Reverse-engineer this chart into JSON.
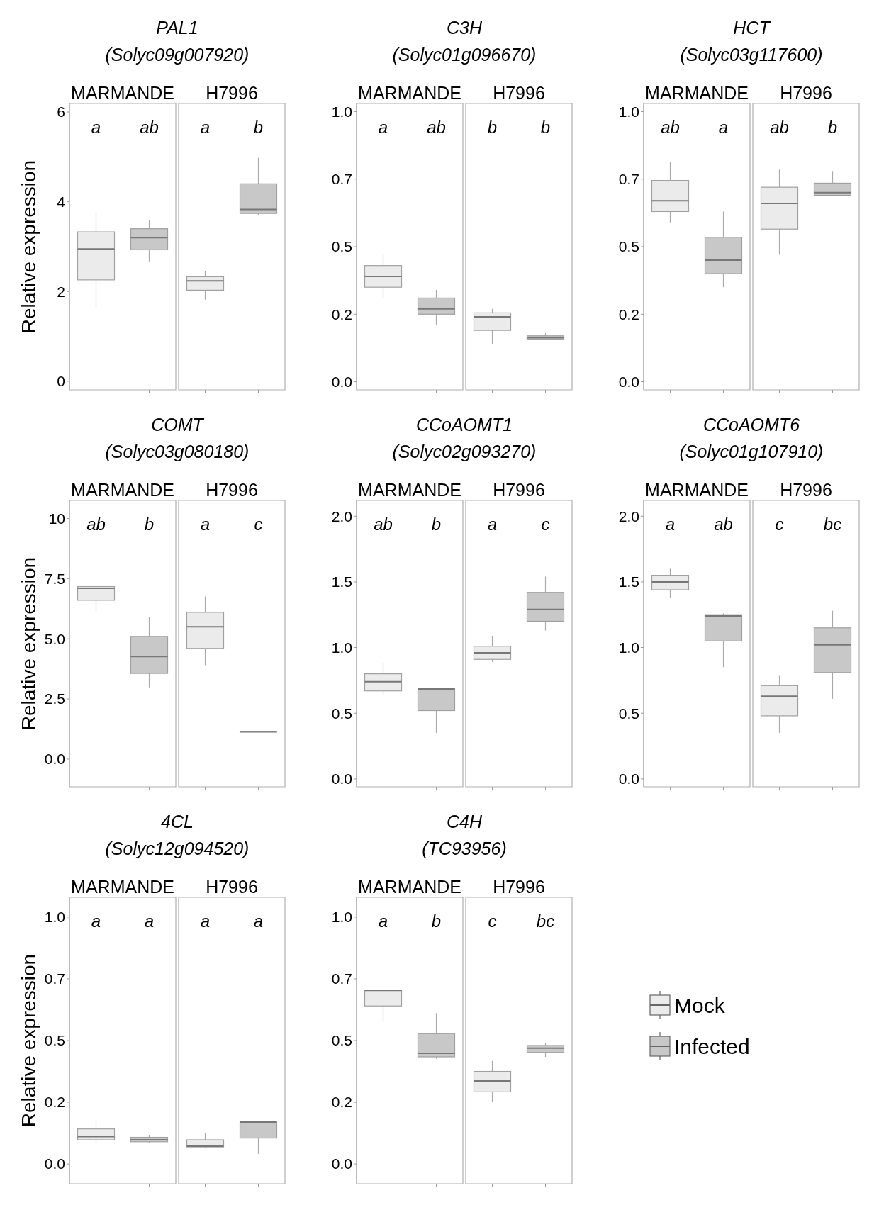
{
  "chart_data": [
    {
      "type": "box",
      "title": "PAL1",
      "subtitle": "(Solyc09g007920)",
      "ylabel": "Relative expression",
      "categories": [
        "MARMANDE",
        "H7996"
      ],
      "ylim": [
        -0.19,
        6.19
      ],
      "yticks": [
        0,
        2,
        4,
        6
      ],
      "annotations": [
        "a",
        "ab",
        "a",
        "b"
      ],
      "series": [
        {
          "color": "#ebebeb",
          "boxes": [
            {
              "low": 1.64,
              "q1": 2.26,
              "median": 2.95,
              "q3": 3.33,
              "high": 3.74
            },
            {
              "low": 1.82,
              "q1": 2.03,
              "median": 2.24,
              "q3": 2.33,
              "high": 2.46
            }
          ]
        },
        {
          "color": "#c8c8c8",
          "boxes": [
            {
              "low": 2.67,
              "q1": 2.93,
              "median": 3.2,
              "q3": 3.4,
              "high": 3.6
            },
            {
              "low": 3.7,
              "q1": 3.74,
              "median": 3.83,
              "q3": 4.4,
              "high": 4.98
            }
          ]
        }
      ]
    },
    {
      "type": "box",
      "title": "C3H",
      "subtitle": "(Solyc01g096670)",
      "categories": [
        "MARMANDE",
        "H7996"
      ],
      "ylim": [
        -0.03,
        1.03
      ],
      "yticks": [
        {
          "value": 0,
          "label": "0.0"
        },
        {
          "value": 0.25,
          "label": "0.2"
        },
        {
          "value": 0.5,
          "label": "0.5"
        },
        {
          "value": 0.75,
          "label": "0.7"
        },
        {
          "value": 1,
          "label": "1.0"
        }
      ],
      "annotations": [
        "a",
        "ab",
        "b",
        "b"
      ],
      "series": [
        {
          "color": "#ebebeb",
          "boxes": [
            {
              "low": 0.31,
              "q1": 0.35,
              "median": 0.39,
              "q3": 0.43,
              "high": 0.47
            },
            {
              "low": 0.14,
              "q1": 0.19,
              "median": 0.24,
              "q3": 0.255,
              "high": 0.27
            }
          ]
        },
        {
          "color": "#c8c8c8",
          "boxes": [
            {
              "low": 0.21,
              "q1": 0.25,
              "median": 0.27,
              "q3": 0.31,
              "high": 0.34
            },
            {
              "low": 0.155,
              "q1": 0.157,
              "median": 0.163,
              "q3": 0.17,
              "high": 0.18
            }
          ]
        }
      ]
    },
    {
      "type": "box",
      "title": "HCT",
      "subtitle": "(Solyc03g117600)",
      "categories": [
        "MARMANDE",
        "H7996"
      ],
      "ylim": [
        -0.03,
        1.03
      ],
      "yticks": [
        {
          "value": 0,
          "label": "0.0"
        },
        {
          "value": 0.25,
          "label": "0.2"
        },
        {
          "value": 0.5,
          "label": "0.5"
        },
        {
          "value": 0.75,
          "label": "0.7"
        },
        {
          "value": 1,
          "label": "1.0"
        }
      ],
      "annotations": [
        "ab",
        "a",
        "ab",
        "b"
      ],
      "series": [
        {
          "color": "#ebebeb",
          "boxes": [
            {
              "low": 0.59,
              "q1": 0.63,
              "median": 0.67,
              "q3": 0.745,
              "high": 0.815
            },
            {
              "low": 0.47,
              "q1": 0.565,
              "median": 0.66,
              "q3": 0.72,
              "high": 0.785
            }
          ]
        },
        {
          "color": "#c8c8c8",
          "boxes": [
            {
              "low": 0.35,
              "q1": 0.4,
              "median": 0.45,
              "q3": 0.535,
              "high": 0.63
            },
            {
              "low": 0.69,
              "q1": 0.69,
              "median": 0.7,
              "q3": 0.735,
              "high": 0.78
            }
          ]
        }
      ]
    },
    {
      "type": "box",
      "title": "COMT",
      "subtitle": "(Solyc03g080180)",
      "ylabel": "Relative expression",
      "categories": [
        "MARMANDE",
        "H7996"
      ],
      "ylim": [
        -1.15,
        10.75
      ],
      "yticks": [
        {
          "value": 0,
          "label": "0.0"
        },
        {
          "value": 2.5,
          "label": "2.5"
        },
        {
          "value": 5,
          "label": "5.0"
        },
        {
          "value": 7.5,
          "label": "7.5"
        },
        10
      ],
      "annotations": [
        "ab",
        "b",
        "a",
        "c"
      ],
      "series": [
        {
          "color": "#ebebeb",
          "boxes": [
            {
              "low": 6.1,
              "q1": 6.6,
              "median": 7.1,
              "q3": 7.17,
              "high": 7.2
            },
            {
              "low": 3.9,
              "q1": 4.6,
              "median": 5.5,
              "q3": 6.1,
              "high": 6.76
            }
          ]
        },
        {
          "color": "#c8c8c8",
          "boxes": [
            {
              "low": 2.98,
              "q1": 3.56,
              "median": 4.26,
              "q3": 5.1,
              "high": 5.9
            },
            {
              "low": 1.12,
              "q1": 1.13,
              "median": 1.14,
              "q3": 1.15,
              "high": 1.16
            }
          ]
        }
      ]
    },
    {
      "type": "box",
      "title": "CCoAOMT1",
      "subtitle": "(Solyc02g093270)",
      "categories": [
        "MARMANDE",
        "H7996"
      ],
      "ylim": [
        -0.06,
        2.12
      ],
      "yticks": [
        {
          "value": 0,
          "label": "0.0"
        },
        {
          "value": 0.5,
          "label": "0.5"
        },
        {
          "value": 1,
          "label": "1.0"
        },
        {
          "value": 1.5,
          "label": "1.5"
        },
        {
          "value": 2,
          "label": "2.0"
        }
      ],
      "annotations": [
        "ab",
        "b",
        "a",
        "c"
      ],
      "series": [
        {
          "color": "#ebebeb",
          "boxes": [
            {
              "low": 0.64,
              "q1": 0.67,
              "median": 0.74,
              "q3": 0.8,
              "high": 0.88
            },
            {
              "low": 0.89,
              "q1": 0.91,
              "median": 0.96,
              "q3": 1.01,
              "high": 1.09
            }
          ]
        },
        {
          "color": "#c8c8c8",
          "boxes": [
            {
              "low": 0.35,
              "q1": 0.52,
              "median": 0.685,
              "q3": 0.69,
              "high": 0.69
            },
            {
              "low": 1.13,
              "q1": 1.2,
              "median": 1.29,
              "q3": 1.42,
              "high": 1.54
            }
          ]
        }
      ]
    },
    {
      "type": "box",
      "title": "CCoAOMT6",
      "subtitle": "(Solyc01g107910)",
      "categories": [
        "MARMANDE",
        "H7996"
      ],
      "ylim": [
        -0.06,
        2.12
      ],
      "yticks": [
        {
          "value": 0,
          "label": "0.0"
        },
        {
          "value": 0.5,
          "label": "0.5"
        },
        {
          "value": 1,
          "label": "1.0"
        },
        {
          "value": 1.5,
          "label": "1.5"
        },
        {
          "value": 2,
          "label": "2.0"
        }
      ],
      "annotations": [
        "a",
        "ab",
        "c",
        "bc"
      ],
      "series": [
        {
          "color": "#ebebeb",
          "boxes": [
            {
              "low": 1.38,
              "q1": 1.44,
              "median": 1.5,
              "q3": 1.55,
              "high": 1.6
            },
            {
              "low": 0.35,
              "q1": 0.48,
              "median": 0.63,
              "q3": 0.71,
              "high": 0.79
            }
          ]
        },
        {
          "color": "#c8c8c8",
          "boxes": [
            {
              "low": 0.85,
              "q1": 1.05,
              "median": 1.24,
              "q3": 1.25,
              "high": 1.26
            },
            {
              "low": 0.61,
              "q1": 0.81,
              "median": 1.02,
              "q3": 1.15,
              "high": 1.28
            }
          ]
        }
      ]
    },
    {
      "type": "box",
      "title": "4CL",
      "subtitle": "(Solyc12g094520)",
      "ylabel": "Relative expression",
      "categories": [
        "MARMANDE",
        "H7996"
      ],
      "ylim": [
        -0.08,
        1.08
      ],
      "yticks": [
        {
          "value": 0,
          "label": "0.0"
        },
        {
          "value": 0.25,
          "label": "0.2"
        },
        {
          "value": 0.5,
          "label": "0.5"
        },
        {
          "value": 0.75,
          "label": "0.7"
        },
        {
          "value": 1,
          "label": "1.0"
        }
      ],
      "annotations": [
        "a",
        "a",
        "a",
        "a"
      ],
      "series": [
        {
          "color": "#ebebeb",
          "boxes": [
            {
              "low": 0.088,
              "q1": 0.098,
              "median": 0.111,
              "q3": 0.142,
              "high": 0.176
            },
            {
              "low": 0.065,
              "q1": 0.069,
              "median": 0.072,
              "q3": 0.098,
              "high": 0.127
            }
          ]
        },
        {
          "color": "#c8c8c8",
          "boxes": [
            {
              "low": 0.087,
              "q1": 0.09,
              "median": 0.098,
              "q3": 0.108,
              "high": 0.118
            },
            {
              "low": 0.041,
              "q1": 0.105,
              "median": 0.17,
              "q3": 0.17,
              "high": 0.17
            }
          ]
        }
      ]
    },
    {
      "type": "box",
      "title": "C4H",
      "subtitle": "(TC93956)",
      "legend": "right",
      "categories": [
        "MARMANDE",
        "H7996"
      ],
      "ylim": [
        -0.08,
        1.08
      ],
      "yticks": [
        {
          "value": 0,
          "label": "0.0"
        },
        {
          "value": 0.25,
          "label": "0.2"
        },
        {
          "value": 0.5,
          "label": "0.5"
        },
        {
          "value": 0.75,
          "label": "0.7"
        },
        {
          "value": 1,
          "label": "1.0"
        }
      ],
      "annotations": [
        "a",
        "b",
        "c",
        "bc"
      ],
      "series": [
        {
          "name": "Mock",
          "color": "#ebebeb",
          "boxes": [
            {
              "low": 0.577,
              "q1": 0.64,
              "median": 0.703,
              "q3": 0.705,
              "high": 0.705
            },
            {
              "low": 0.251,
              "q1": 0.292,
              "median": 0.336,
              "q3": 0.375,
              "high": 0.418
            }
          ]
        },
        {
          "name": "Infected",
          "color": "#c8c8c8",
          "boxes": [
            {
              "low": 0.426,
              "q1": 0.434,
              "median": 0.448,
              "q3": 0.528,
              "high": 0.611
            },
            {
              "low": 0.434,
              "q1": 0.452,
              "median": 0.469,
              "q3": 0.48,
              "high": 0.489
            }
          ]
        }
      ]
    }
  ]
}
